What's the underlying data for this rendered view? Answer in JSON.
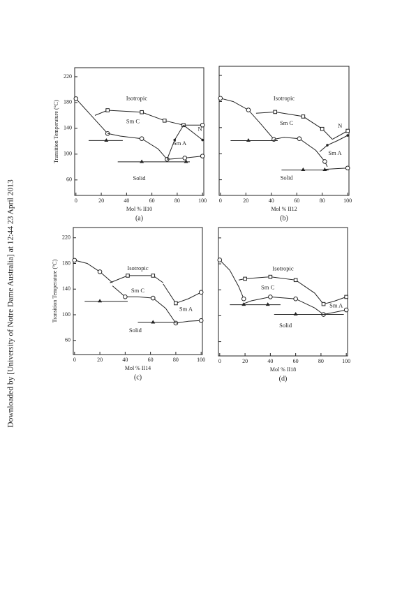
{
  "side_note": "Downloaded by [University of Notre Dame Australia] at 12:44 23 April 2013",
  "chart_data": [
    {
      "type": "line",
      "caption": "(a)",
      "xlabel": "Mol % II10",
      "ylabel": "Transition Temperature (°C)",
      "xlim": [
        -1,
        101
      ],
      "ylim": [
        36,
        234
      ],
      "xticks": [
        0,
        20,
        40,
        60,
        80,
        100
      ],
      "yticks": [
        60,
        100,
        140,
        180,
        220
      ],
      "show_ytick_labels": true,
      "region_labels": [
        "Isotropic",
        "Sm C",
        "Sm A",
        "Solid",
        "N"
      ],
      "series": [
        {
          "x": [
            0,
            12,
            25
          ],
          "values": [
            186,
            160,
            132
          ],
          "markers": [
            "circle",
            null,
            "circle"
          ]
        },
        {
          "x": [
            15,
            25,
            52,
            70,
            85,
            100
          ],
          "values": [
            160,
            168,
            165,
            152,
            145,
            145
          ],
          "markers": [
            null,
            "square",
            "square",
            "square",
            "square",
            "circle"
          ]
        },
        {
          "x": [
            25,
            35,
            52,
            65,
            72
          ],
          "values": [
            132,
            128,
            124,
            108,
            92
          ],
          "markers": [
            null,
            null,
            "circle",
            null,
            "circle"
          ]
        },
        {
          "x": [
            72,
            78,
            85
          ],
          "values": [
            92,
            122,
            145
          ],
          "markers": [
            null,
            "dot",
            null
          ]
        },
        {
          "x": [
            85,
            100
          ],
          "values": [
            145,
            122
          ],
          "markers": [
            null,
            "dot"
          ]
        },
        {
          "x": [
            72,
            86,
            100
          ],
          "values": [
            92,
            94,
            97
          ],
          "markers": [
            null,
            "circle",
            "circle"
          ]
        },
        {
          "x": [
            10,
            24,
            37
          ],
          "values": [
            121,
            121,
            121
          ],
          "markers": [
            null,
            "triangle",
            null
          ]
        },
        {
          "x": [
            33,
            52,
            87,
            90
          ],
          "values": [
            88,
            88,
            88,
            88
          ],
          "markers": [
            null,
            "triangle",
            "triangle",
            null
          ]
        }
      ]
    },
    {
      "type": "line",
      "caption": "(b)",
      "xlabel": "Mol % II12",
      "xlim": [
        -1,
        101
      ],
      "ylim": [
        36,
        234
      ],
      "xticks": [
        0,
        20,
        40,
        60,
        80,
        100
      ],
      "yticks": [
        60,
        100,
        140,
        180,
        220
      ],
      "show_ytick_labels": false,
      "region_labels": [
        "Isotropic",
        "Sm C",
        "Sm A",
        "Solid",
        "N"
      ],
      "series": [
        {
          "x": [
            0,
            10,
            22,
            32,
            42
          ],
          "values": [
            185,
            180,
            167,
            145,
            122
          ],
          "markers": [
            "circle",
            null,
            "circle",
            null,
            "circle"
          ]
        },
        {
          "x": [
            28,
            43,
            65,
            80,
            88
          ],
          "values": [
            162,
            164,
            157,
            138,
            122
          ],
          "markers": [
            null,
            "square",
            "square",
            "square",
            null
          ]
        },
        {
          "x": [
            88,
            100
          ],
          "values": [
            122,
            135
          ],
          "markers": [
            null,
            "square"
          ]
        },
        {
          "x": [
            42,
            50,
            62,
            75,
            82,
            84
          ],
          "values": [
            122,
            125,
            123,
            105,
            88,
            80
          ],
          "markers": [
            null,
            null,
            "circle",
            null,
            "circle",
            null
          ]
        },
        {
          "x": [
            78,
            84,
            92,
            100
          ],
          "values": [
            103,
            113,
            120,
            128
          ],
          "markers": [
            null,
            "dot",
            null,
            "dot"
          ]
        },
        {
          "x": [
            82,
            90,
            100
          ],
          "values": [
            76,
            77,
            78
          ],
          "markers": [
            null,
            null,
            "circle"
          ]
        },
        {
          "x": [
            8,
            22,
            45
          ],
          "values": [
            120,
            120,
            120
          ],
          "markers": [
            null,
            "triangle",
            null
          ]
        },
        {
          "x": [
            48,
            65,
            82,
            85
          ],
          "values": [
            75,
            75,
            75,
            75
          ],
          "markers": [
            null,
            "triangle",
            "triangle",
            null
          ]
        }
      ]
    },
    {
      "type": "line",
      "caption": "(c)",
      "xlabel": "Mol % II14",
      "ylabel": "Transition Temperature (°C)",
      "xlim": [
        -1,
        101
      ],
      "ylim": [
        38,
        236
      ],
      "xticks": [
        0,
        20,
        40,
        60,
        80,
        100
      ],
      "yticks": [
        60,
        100,
        140,
        180,
        220
      ],
      "show_ytick_labels": true,
      "region_labels": [
        "Isotropic",
        "Sm C",
        "Sm A",
        "Solid"
      ],
      "series": [
        {
          "x": [
            0,
            10,
            20,
            30
          ],
          "values": [
            185,
            180,
            167,
            150
          ],
          "markers": [
            "circle",
            null,
            "circle",
            null
          ]
        },
        {
          "x": [
            28,
            42,
            62,
            70
          ],
          "values": [
            150,
            161,
            161,
            150
          ],
          "markers": [
            null,
            "square",
            "square",
            null
          ]
        },
        {
          "x": [
            30,
            40,
            50,
            62,
            72,
            80
          ],
          "values": [
            145,
            128,
            128,
            126,
            110,
            87
          ],
          "markers": [
            null,
            "circle",
            null,
            "circle",
            null,
            "circle"
          ]
        },
        {
          "x": [
            70,
            80,
            90,
            100
          ],
          "values": [
            148,
            118,
            125,
            135
          ],
          "markers": [
            null,
            "square",
            null,
            "circle"
          ]
        },
        {
          "x": [
            80,
            90,
            100
          ],
          "values": [
            87,
            90,
            91
          ],
          "markers": [
            null,
            null,
            "circle"
          ]
        },
        {
          "x": [
            8,
            20,
            42
          ],
          "values": [
            121,
            121,
            121
          ],
          "markers": [
            null,
            "triangle",
            null
          ]
        },
        {
          "x": [
            50,
            62,
            80
          ],
          "values": [
            88,
            88,
            88
          ],
          "markers": [
            null,
            "triangle",
            null
          ]
        }
      ]
    },
    {
      "type": "line",
      "caption": "(d)",
      "xlabel": "Mol % II18",
      "xlim": [
        -1,
        101
      ],
      "ylim": [
        38,
        236
      ],
      "xticks": [
        0,
        20,
        40,
        60,
        80,
        100
      ],
      "yticks": [
        60,
        100,
        140,
        180,
        220
      ],
      "show_ytick_labels": false,
      "region_labels": [
        "Isotropic",
        "Sm C",
        "Sm A",
        "Solid"
      ],
      "series": [
        {
          "x": [
            0,
            8,
            15,
            19
          ],
          "values": [
            186,
            170,
            145,
            126
          ],
          "markers": [
            "circle",
            null,
            null,
            "circle"
          ]
        },
        {
          "x": [
            15,
            20,
            40,
            60,
            75,
            82
          ],
          "values": [
            155,
            157,
            160,
            155,
            135,
            118
          ],
          "markers": [
            null,
            "square",
            "square",
            "square",
            null,
            null
          ]
        },
        {
          "x": [
            18,
            25,
            40,
            60,
            75,
            82
          ],
          "values": [
            118,
            123,
            129,
            126,
            112,
            102
          ],
          "markers": [
            null,
            null,
            "circle",
            "circle",
            null,
            "circle"
          ]
        },
        {
          "x": [
            82,
            90,
            100
          ],
          "values": [
            118,
            122,
            129
          ],
          "markers": [
            "square",
            null,
            "square"
          ]
        },
        {
          "x": [
            82,
            90,
            100
          ],
          "values": [
            102,
            105,
            109
          ],
          "markers": [
            null,
            null,
            "circle"
          ]
        },
        {
          "x": [
            8,
            19,
            38,
            48
          ],
          "values": [
            117,
            117,
            117,
            117
          ],
          "markers": [
            null,
            "triangle",
            "triangle",
            null
          ]
        },
        {
          "x": [
            43,
            60,
            98
          ],
          "values": [
            102,
            102,
            102
          ],
          "markers": [
            null,
            "triangle",
            null
          ]
        }
      ]
    }
  ]
}
